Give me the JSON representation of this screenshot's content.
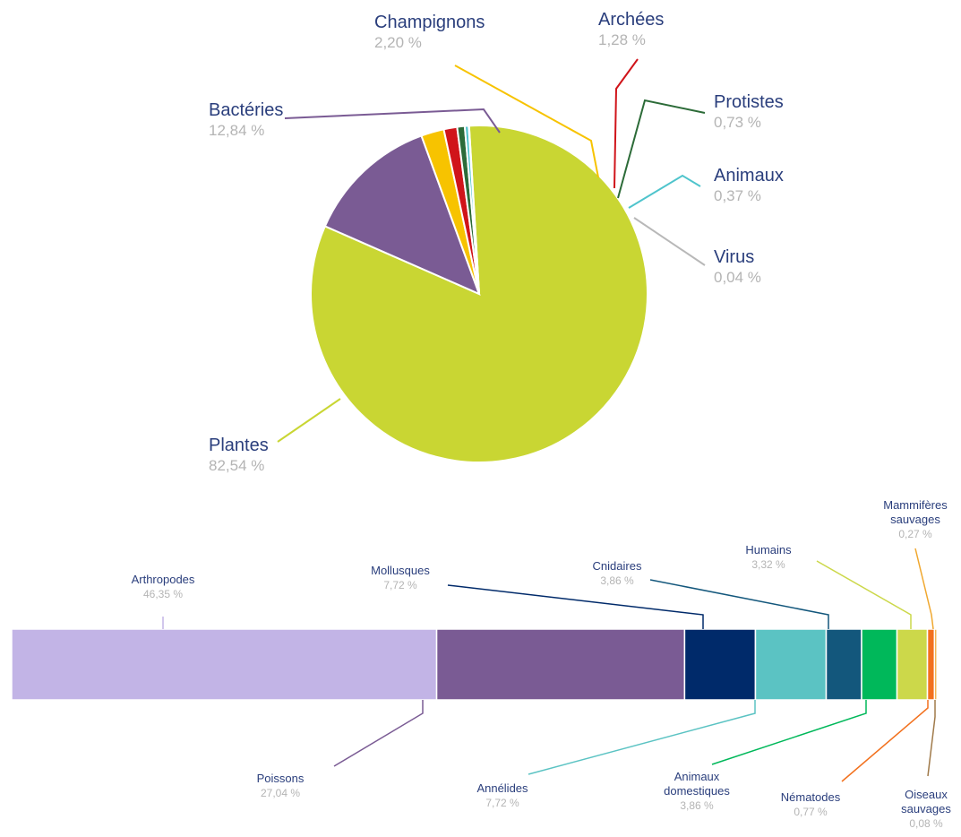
{
  "chart_data": [
    {
      "type": "pie",
      "slices": [
        {
          "label": "Plantes",
          "display": "82,54 %",
          "value": 82.54,
          "color": "#c9d633"
        },
        {
          "label": "Bactéries",
          "display": "12,84 %",
          "value": 12.84,
          "color": "#7a5b94"
        },
        {
          "label": "Champignons",
          "display": "2,20 %",
          "value": 2.2,
          "color": "#f7c300"
        },
        {
          "label": "Archées",
          "display": "1,28 %",
          "value": 1.28,
          "color": "#d0141a"
        },
        {
          "label": "Protistes",
          "display": "0,73 %",
          "value": 0.73,
          "color": "#2c6b38"
        },
        {
          "label": "Animaux",
          "display": "0,37 %",
          "value": 0.37,
          "color": "#4fc4cc"
        },
        {
          "label": "Virus",
          "display": "0,04 %",
          "value": 0.04,
          "color": "#9a9a9a"
        }
      ]
    },
    {
      "type": "bar",
      "orientation": "horizontal-stacked",
      "segments": [
        {
          "label": "Arthropodes",
          "display": "46,35 %",
          "value": 46.35,
          "color": "#c2b4e6"
        },
        {
          "label": "Poissons",
          "display": "27,04 %",
          "value": 27.04,
          "color": "#7a5b94"
        },
        {
          "label": "Mollusques",
          "display": "7,72 %",
          "value": 7.72,
          "color": "#002a6a"
        },
        {
          "label": "Annélides",
          "display": "7,72 %",
          "value": 7.72,
          "color": "#5bc3c3"
        },
        {
          "label": "Cnidaires",
          "display": "3,86 %",
          "value": 3.86,
          "color": "#13577c"
        },
        {
          "label": "Animaux domestiques",
          "display": "3,86 %",
          "value": 3.86,
          "color": "#00b85a"
        },
        {
          "label": "Humains",
          "display": "3,32 %",
          "value": 3.32,
          "color": "#ccd84a"
        },
        {
          "label": "Nématodes",
          "display": "0,77 %",
          "value": 0.77,
          "color": "#f2711e"
        },
        {
          "label": "Mammifères sauvages",
          "display": "0,27 %",
          "value": 0.27,
          "color": "#f0a830"
        },
        {
          "label": "Oiseaux sauvages",
          "display": "0,08 %",
          "value": 0.08,
          "color": "#a07a4a"
        }
      ]
    }
  ]
}
